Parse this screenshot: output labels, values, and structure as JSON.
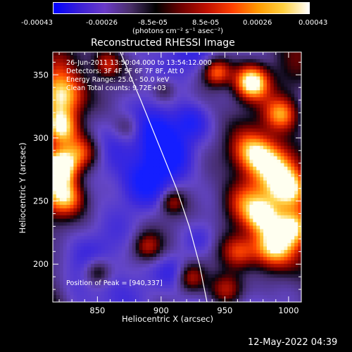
{
  "colorbar": {
    "ticks": [
      "-0.00043",
      "-0.00026",
      "-8.5e-05",
      "8.5e-05",
      "0.00026",
      "0.00043"
    ],
    "unit_label": "(photons cm⁻² s⁻¹ asec⁻²)",
    "colors": [
      "#0000ff",
      "#3a1fd6",
      "#6a3ac8",
      "#4a2f6a",
      "#000000",
      "#6e0000",
      "#c01000",
      "#ff4000",
      "#ff9a00",
      "#ffd040",
      "#ffffff"
    ]
  },
  "info": {
    "line1": "26-Jun-2011 13:50:04.000 to 13:54:12.000",
    "line2": "Detectors: 3F 4F 5F 6F 7F 8F, Att 0",
    "line3": "Energy Range: 25.0 - 50.0 keV",
    "line4": "Clean    Total counts: 9.72E+03",
    "peak": "Position of Peak = [940,337]"
  },
  "footer": {
    "timestamp": "12-May-2022 04:39"
  },
  "chart_data": {
    "type": "heatmap",
    "title": "Reconstructed RHESSI Image",
    "xlabel": "Heliocentric X (arcsec)",
    "ylabel": "Heliocentric Y (arcsec)",
    "xlim": [
      815,
      1010
    ],
    "ylim": [
      170,
      368
    ],
    "xticks": [
      850,
      900,
      950,
      1000
    ],
    "yticks": [
      200,
      250,
      300,
      350
    ],
    "value_range": [
      -0.00043,
      0.00043
    ],
    "peak_position": [
      940,
      337
    ],
    "limb_curve": {
      "x": [
        868,
        884,
        900,
        912,
        922,
        930,
        936
      ],
      "y": [
        368,
        330,
        290,
        260,
        230,
        200,
        170
      ]
    }
  }
}
